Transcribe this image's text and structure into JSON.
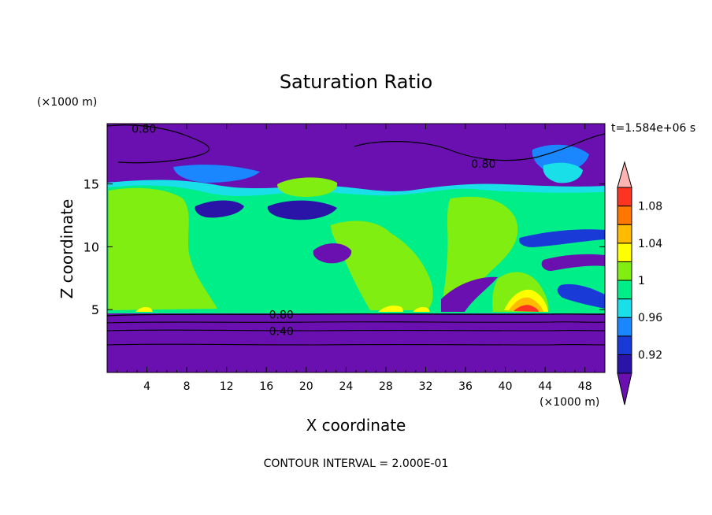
{
  "chart_data": {
    "type": "heatmap",
    "title": "Saturation Ratio",
    "xlabel": "X coordinate",
    "ylabel": "Z coordinate",
    "x_unit_label": "(×1000 m)",
    "y_unit_label": "(×1000 m)",
    "time_label": "t=1.584e+06 s",
    "footer": "CONTOUR INTERVAL = 2.000E-01",
    "xlim": [
      0,
      50
    ],
    "ylim": [
      0,
      19.8
    ],
    "x_ticks": [
      "4",
      "8",
      "12",
      "16",
      "20",
      "24",
      "28",
      "32",
      "36",
      "40",
      "44",
      "48"
    ],
    "x_tick_values": [
      4,
      8,
      12,
      16,
      20,
      24,
      28,
      32,
      36,
      40,
      44,
      48
    ],
    "y_ticks": [
      "5",
      "10",
      "15"
    ],
    "y_tick_values": [
      5,
      10,
      15
    ],
    "contour_labels": [
      {
        "text": "0.80",
        "x": 3.7,
        "y": 19.4
      },
      {
        "text": "0.80",
        "x": 37.8,
        "y": 16.6
      },
      {
        "text": "0.80",
        "x": 17.5,
        "y": 4.6
      },
      {
        "text": "0.40",
        "x": 17.5,
        "y": 3.3
      }
    ],
    "colorbar": {
      "labels": [
        "1.08",
        "1.04",
        "1",
        "0.96",
        "0.92"
      ],
      "levels": [
        0.9,
        0.92,
        0.94,
        0.96,
        0.98,
        1.0,
        1.02,
        1.04,
        1.06,
        1.08,
        1.1
      ],
      "colors": [
        "#6a0fb0",
        "#2a14a8",
        "#1a3ad8",
        "#1a86ff",
        "#19e0e8",
        "#00ee88",
        "#80ee10",
        "#ffff00",
        "#ffbb00",
        "#ff7700",
        "#ff3322",
        "#ffb4b4"
      ]
    }
  }
}
